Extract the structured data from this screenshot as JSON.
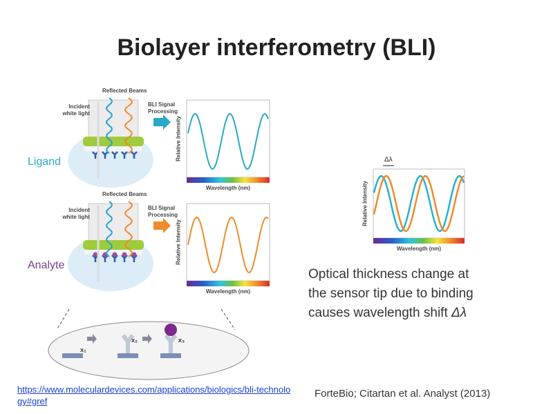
{
  "title": "Biolayer interferometry (BLI)",
  "panels": [
    {
      "label": "Ligand",
      "reflected_beams": "Reflected Beams",
      "incident_light": "Incident white light",
      "processing": "BLI Signal Processing",
      "y_axis": "Relative Intensity",
      "x_axis": "Wavelength (nm)"
    },
    {
      "label": "Analyte",
      "reflected_beams": "Reflected Beams",
      "incident_light": "Incident white light",
      "processing": "BLI Signal Processing",
      "y_axis": "Relative Intensity",
      "x_axis": "Wavelength (nm)"
    }
  ],
  "binding_steps": [
    "x₁",
    "x₂",
    "x₃"
  ],
  "shift_plot": {
    "shift": "Δλ",
    "y_axis": "Relative Intensity",
    "x_axis": "Wavelength (nm)"
  },
  "description": {
    "lines": [
      "Optical thickness change at",
      "the sensor tip due to binding",
      "causes wavelength shift"
    ],
    "symbol": "Δλ"
  },
  "link": "https://www.moleculardevices.com/applications/biologics/bli-technology#gref",
  "citation": "ForteBio; Citartan et al. Analyst (2013)"
}
